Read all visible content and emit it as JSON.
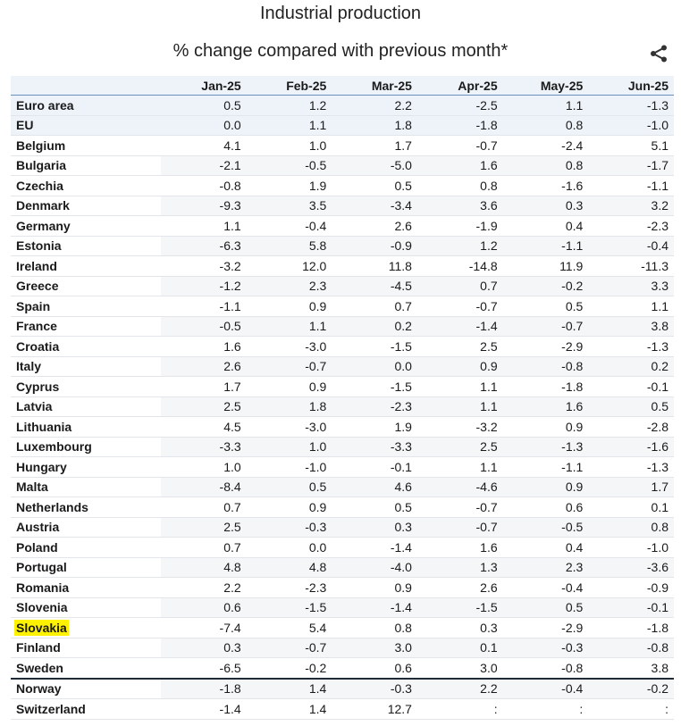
{
  "chart_data": {
    "type": "table",
    "title": "Industrial production",
    "subtitle": "% change compared with previous month*",
    "columns": [
      "Jan-25",
      "Feb-25",
      "Mar-25",
      "Apr-25",
      "May-25",
      "Jun-25"
    ],
    "rows": [
      {
        "name": "Euro area",
        "values": [
          "0.5",
          "1.2",
          "2.2",
          "-2.5",
          "1.1",
          "-1.3"
        ],
        "aggregate": true
      },
      {
        "name": "EU",
        "values": [
          "0.0",
          "1.1",
          "1.8",
          "-1.8",
          "0.8",
          "-1.0"
        ],
        "aggregate": true
      },
      {
        "name": "Belgium",
        "values": [
          "4.1",
          "1.0",
          "1.7",
          "-0.7",
          "-2.4",
          "5.1"
        ]
      },
      {
        "name": "Bulgaria",
        "values": [
          "-2.1",
          "-0.5",
          "-5.0",
          "1.6",
          "0.8",
          "-1.7"
        ]
      },
      {
        "name": "Czechia",
        "values": [
          "-0.8",
          "1.9",
          "0.5",
          "0.8",
          "-1.6",
          "-1.1"
        ]
      },
      {
        "name": "Denmark",
        "values": [
          "-9.3",
          "3.5",
          "-3.4",
          "3.6",
          "0.3",
          "3.2"
        ]
      },
      {
        "name": "Germany",
        "values": [
          "1.1",
          "-0.4",
          "2.6",
          "-1.9",
          "0.4",
          "-2.3"
        ]
      },
      {
        "name": "Estonia",
        "values": [
          "-6.3",
          "5.8",
          "-0.9",
          "1.2",
          "-1.1",
          "-0.4"
        ]
      },
      {
        "name": "Ireland",
        "values": [
          "-3.2",
          "12.0",
          "11.8",
          "-14.8",
          "11.9",
          "-11.3"
        ]
      },
      {
        "name": "Greece",
        "values": [
          "-1.2",
          "2.3",
          "-4.5",
          "0.7",
          "-0.2",
          "3.3"
        ]
      },
      {
        "name": "Spain",
        "values": [
          "-1.1",
          "0.9",
          "0.7",
          "-0.7",
          "0.5",
          "1.1"
        ]
      },
      {
        "name": "France",
        "values": [
          "-0.5",
          "1.1",
          "0.2",
          "-1.4",
          "-0.7",
          "3.8"
        ]
      },
      {
        "name": "Croatia",
        "values": [
          "1.6",
          "-3.0",
          "-1.5",
          "2.5",
          "-2.9",
          "-1.3"
        ]
      },
      {
        "name": "Italy",
        "values": [
          "2.6",
          "-0.7",
          "0.0",
          "0.9",
          "-0.8",
          "0.2"
        ]
      },
      {
        "name": "Cyprus",
        "values": [
          "1.7",
          "0.9",
          "-1.5",
          "1.1",
          "-1.8",
          "-0.1"
        ]
      },
      {
        "name": "Latvia",
        "values": [
          "2.5",
          "1.8",
          "-2.3",
          "1.1",
          "1.6",
          "0.5"
        ]
      },
      {
        "name": "Lithuania",
        "values": [
          "4.5",
          "-3.0",
          "1.9",
          "-3.2",
          "0.9",
          "-2.8"
        ]
      },
      {
        "name": "Luxembourg",
        "values": [
          "-3.3",
          "1.0",
          "-3.3",
          "2.5",
          "-1.3",
          "-1.6"
        ]
      },
      {
        "name": "Hungary",
        "values": [
          "1.0",
          "-1.0",
          "-0.1",
          "1.1",
          "-1.1",
          "-1.3"
        ]
      },
      {
        "name": "Malta",
        "values": [
          "-8.4",
          "0.5",
          "4.6",
          "-4.6",
          "0.9",
          "1.7"
        ]
      },
      {
        "name": "Netherlands",
        "values": [
          "0.7",
          "0.9",
          "0.5",
          "-0.7",
          "0.6",
          "0.1"
        ]
      },
      {
        "name": "Austria",
        "values": [
          "2.5",
          "-0.3",
          "0.3",
          "-0.7",
          "-0.5",
          "0.8"
        ]
      },
      {
        "name": "Poland",
        "values": [
          "0.7",
          "0.0",
          "-1.4",
          "1.6",
          "0.4",
          "-1.0"
        ]
      },
      {
        "name": "Portugal",
        "values": [
          "4.8",
          "4.8",
          "-4.0",
          "1.3",
          "2.3",
          "-3.6"
        ]
      },
      {
        "name": "Romania",
        "values": [
          "2.2",
          "-2.3",
          "0.9",
          "2.6",
          "-0.4",
          "-0.9"
        ]
      },
      {
        "name": "Slovenia",
        "values": [
          "0.6",
          "-1.5",
          "-1.4",
          "-1.5",
          "0.5",
          "-0.1"
        ]
      },
      {
        "name": "Slovakia",
        "values": [
          "-7.4",
          "5.4",
          "0.8",
          "0.3",
          "-2.9",
          "-1.8"
        ],
        "highlight": true
      },
      {
        "name": "Finland",
        "values": [
          "0.3",
          "-0.7",
          "3.0",
          "0.1",
          "-0.3",
          "-0.8"
        ]
      },
      {
        "name": "Sweden",
        "values": [
          "-6.5",
          "-0.2",
          "0.6",
          "3.0",
          "-0.8",
          "3.8"
        ]
      },
      {
        "name": "Norway",
        "values": [
          "-1.8",
          "1.4",
          "-0.3",
          "2.2",
          "-0.4",
          "-0.2"
        ],
        "separator": true
      },
      {
        "name": "Switzerland",
        "values": [
          "-1.4",
          "1.4",
          "12.7",
          ":",
          ":",
          ":"
        ]
      }
    ],
    "colors": {
      "highlight": "#fff200",
      "header_bg": "#eef3fa",
      "stripe": "#f4f6f8"
    }
  },
  "share_icon": "share-icon"
}
